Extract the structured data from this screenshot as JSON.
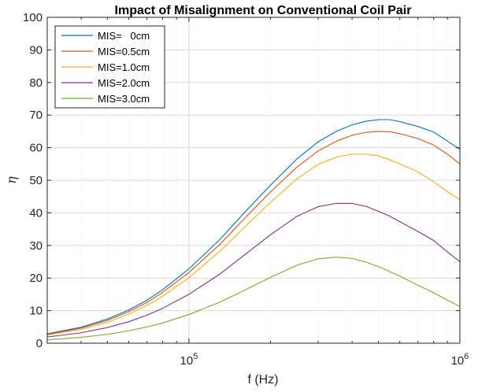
{
  "chart_data": {
    "type": "line",
    "title": "Impact of Misalignment on Conventional Coil Pair",
    "xlabel": "f (Hz)",
    "ylabel": "η",
    "xscale": "log",
    "xlim": [
      30000,
      1000000
    ],
    "ylim": [
      0,
      100
    ],
    "grid": true,
    "legend_position": "top-left",
    "y_ticks": [
      0,
      10,
      20,
      30,
      40,
      50,
      60,
      70,
      80,
      90,
      100
    ],
    "x_ticks": [
      {
        "value": 100000,
        "base": "10",
        "exponent": "5"
      },
      {
        "value": 1000000,
        "base": "10",
        "exponent": "6"
      }
    ],
    "series": [
      {
        "name": "MIS=   0cm",
        "color": "#0072BD",
        "x": [
          30000,
          40000,
          50000,
          60000,
          70000,
          80000,
          100000,
          130000,
          160000,
          200000,
          250000,
          300000,
          350000,
          400000,
          450000,
          500000,
          550000,
          600000,
          700000,
          800000,
          900000,
          1000000
        ],
        "y": [
          2.9,
          4.9,
          7.4,
          10.2,
          13.2,
          16.4,
          22.8,
          31.8,
          40.0,
          48.5,
          56.5,
          61.8,
          65.0,
          67.0,
          68.1,
          68.6,
          68.6,
          68.0,
          66.5,
          64.8,
          62.0,
          59.5
        ]
      },
      {
        "name": "MIS=0.5cm",
        "color": "#D95319",
        "x": [
          30000,
          40000,
          50000,
          60000,
          70000,
          80000,
          100000,
          130000,
          160000,
          200000,
          250000,
          300000,
          350000,
          400000,
          450000,
          500000,
          550000,
          600000,
          700000,
          800000,
          900000,
          1000000
        ],
        "y": [
          2.7,
          4.6,
          7.0,
          9.7,
          12.5,
          15.6,
          21.7,
          30.3,
          38.2,
          46.4,
          54.0,
          59.0,
          62.0,
          63.8,
          64.7,
          65.0,
          64.9,
          64.3,
          62.8,
          60.8,
          58.0,
          55.0
        ]
      },
      {
        "name": "MIS=1.0cm",
        "color": "#EDB120",
        "x": [
          30000,
          40000,
          50000,
          60000,
          70000,
          80000,
          100000,
          130000,
          160000,
          200000,
          250000,
          300000,
          350000,
          400000,
          450000,
          500000,
          550000,
          600000,
          700000,
          800000,
          900000,
          1000000
        ],
        "y": [
          2.5,
          4.2,
          6.4,
          8.9,
          11.6,
          14.4,
          20.1,
          28.2,
          35.5,
          43.2,
          50.4,
          54.9,
          57.1,
          58.0,
          58.0,
          57.5,
          56.3,
          55.0,
          52.6,
          49.5,
          46.5,
          44.0
        ]
      },
      {
        "name": "MIS=2.0cm",
        "color": "#7E2F8E",
        "x": [
          30000,
          40000,
          50000,
          60000,
          70000,
          80000,
          100000,
          130000,
          160000,
          200000,
          250000,
          300000,
          350000,
          400000,
          450000,
          500000,
          550000,
          600000,
          700000,
          800000,
          900000,
          1000000
        ],
        "y": [
          1.9,
          3.2,
          4.8,
          6.6,
          8.6,
          10.7,
          15.0,
          21.2,
          27.0,
          33.3,
          38.9,
          41.9,
          42.9,
          42.9,
          42.0,
          40.5,
          39.0,
          37.3,
          34.3,
          31.5,
          28.0,
          25.0
        ]
      },
      {
        "name": "MIS=3.0cm",
        "color": "#77AC30",
        "x": [
          30000,
          40000,
          50000,
          60000,
          70000,
          80000,
          100000,
          130000,
          160000,
          200000,
          250000,
          300000,
          350000,
          400000,
          450000,
          500000,
          550000,
          600000,
          700000,
          800000,
          900000,
          1000000
        ],
        "y": [
          1.0,
          1.8,
          2.7,
          3.8,
          5.0,
          6.2,
          8.8,
          12.6,
          16.2,
          20.2,
          23.9,
          25.9,
          26.4,
          26.0,
          24.9,
          23.5,
          22.0,
          20.6,
          17.8,
          15.5,
          13.2,
          11.3
        ]
      }
    ]
  }
}
